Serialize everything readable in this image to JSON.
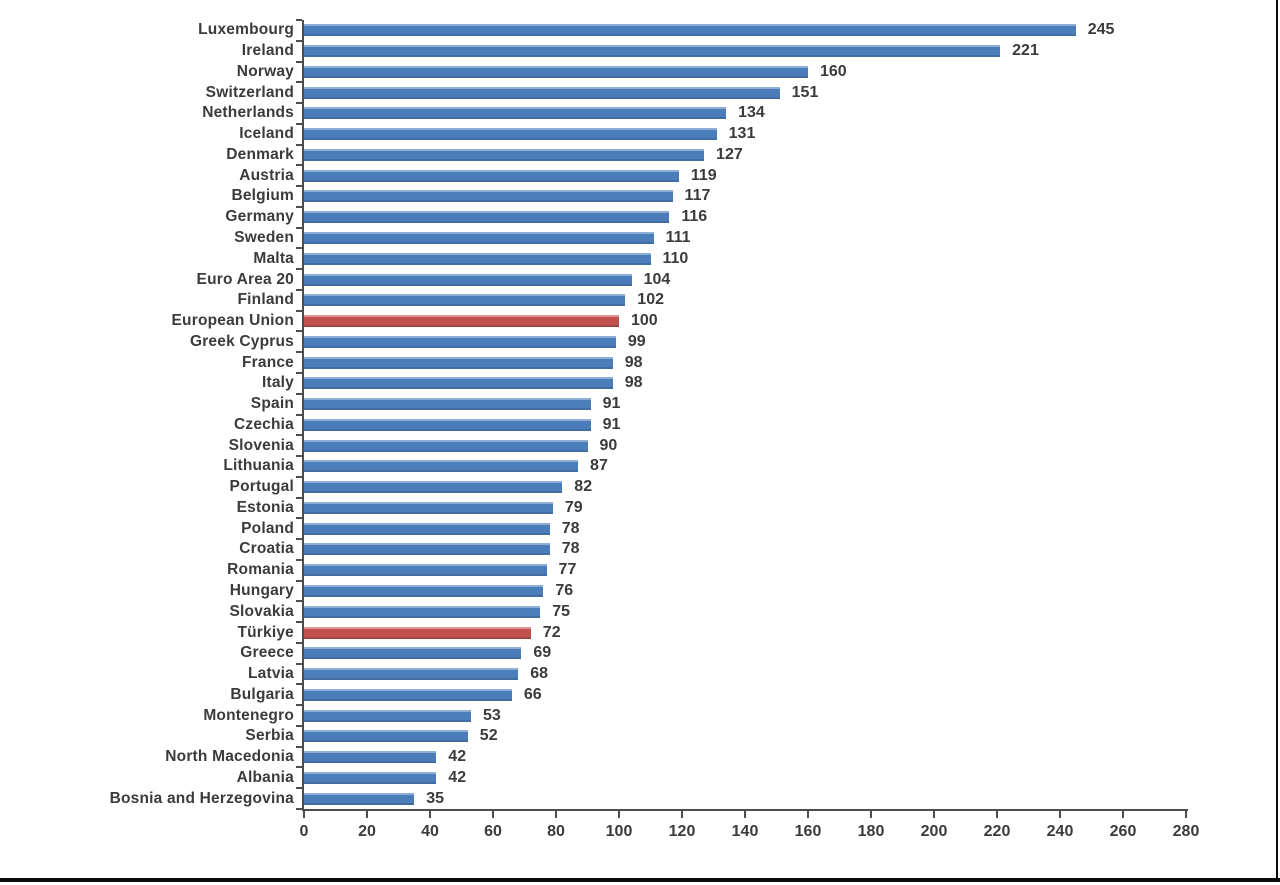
{
  "chart_data": {
    "type": "bar",
    "orientation": "horizontal",
    "title": "",
    "xlabel": "",
    "ylabel": "",
    "xlim": [
      0,
      280
    ],
    "x_ticks": [
      0,
      20,
      40,
      60,
      80,
      100,
      120,
      140,
      160,
      180,
      200,
      220,
      240,
      260,
      280
    ],
    "grid": false,
    "legend_position": "none",
    "value_labels_shown": true,
    "categories": [
      "Luxembourg",
      "Ireland",
      "Norway",
      "Switzerland",
      "Netherlands",
      "Iceland",
      "Denmark",
      "Austria",
      "Belgium",
      "Germany",
      "Sweden",
      "Malta",
      "Euro Area 20",
      "Finland",
      "European Union",
      "Greek Cyprus",
      "France",
      "Italy",
      "Spain",
      "Czechia",
      "Slovenia",
      "Lithuania",
      "Portugal",
      "Estonia",
      "Poland",
      "Croatia",
      "Romania",
      "Hungary",
      "Slovakia",
      "Türkiye",
      "Greece",
      "Latvia",
      "Bulgaria",
      "Montenegro",
      "Serbia",
      "North Macedonia",
      "Albania",
      "Bosnia and Herzegovina"
    ],
    "values": [
      245,
      221,
      160,
      151,
      134,
      131,
      127,
      119,
      117,
      116,
      111,
      110,
      104,
      102,
      100,
      99,
      98,
      98,
      91,
      91,
      90,
      87,
      82,
      79,
      78,
      78,
      77,
      76,
      75,
      72,
      69,
      68,
      66,
      53,
      52,
      42,
      42,
      35
    ],
    "highlighted_categories": [
      "European Union",
      "Türkiye"
    ],
    "bar_color": "#4a7dba",
    "highlight_color": "#c0504d"
  },
  "colors": {
    "background": "#ffffff",
    "text": "#3b3b3b",
    "axis": "#4d4d4d",
    "bar_blue": "#4a7dba",
    "bar_red": "#c0504d",
    "frame": "#0a0a0a"
  }
}
